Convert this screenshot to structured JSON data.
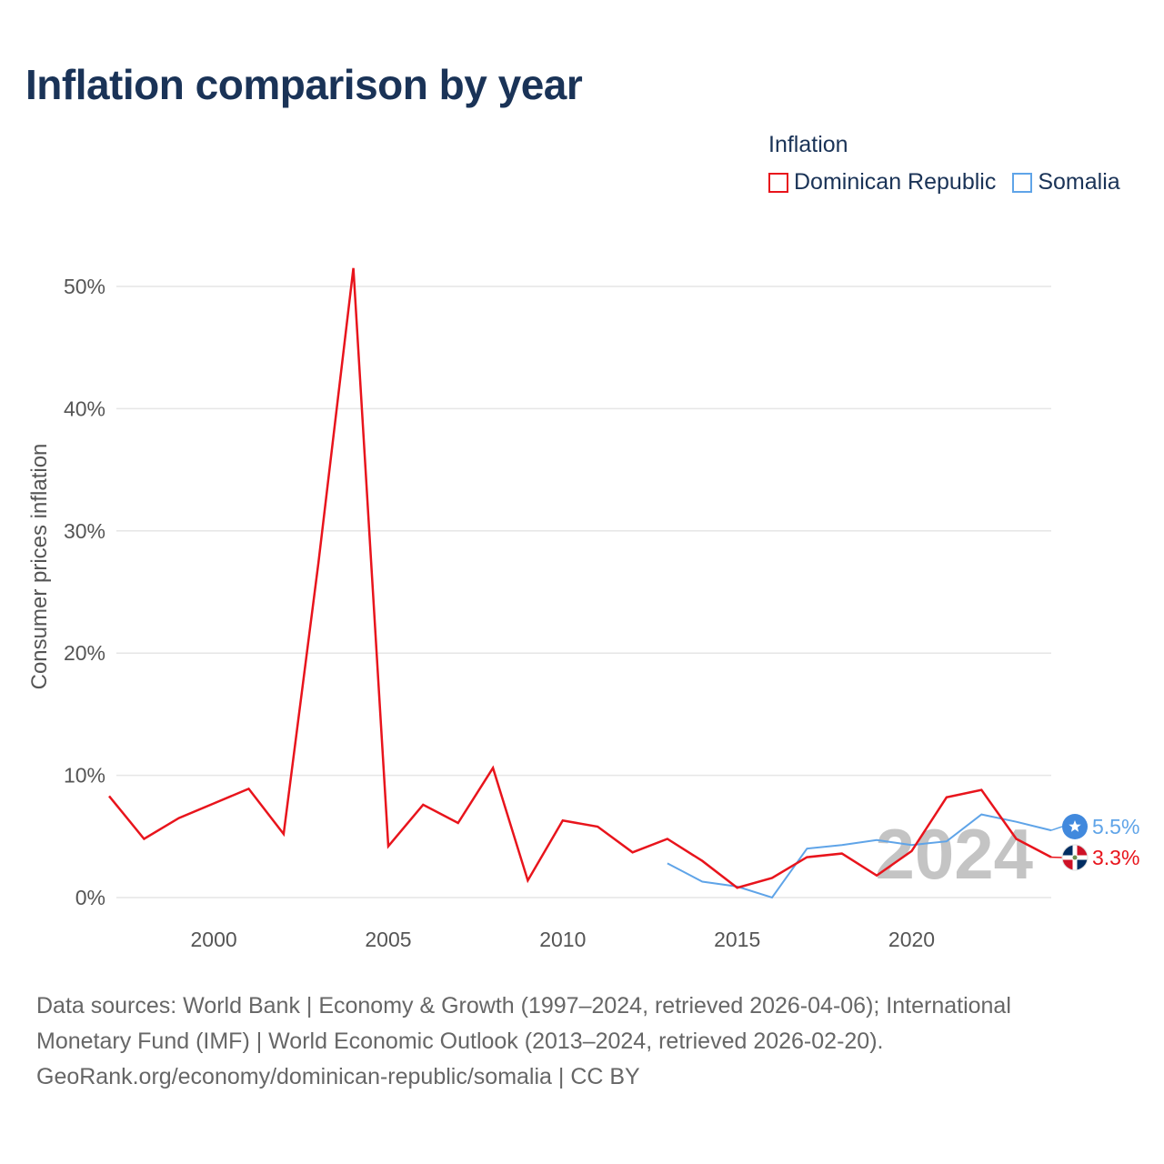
{
  "header": {
    "title": "Inflation comparison by year"
  },
  "legend": {
    "title": "Inflation",
    "items": [
      {
        "label": "Dominican Republic",
        "color": "#e8141c"
      },
      {
        "label": "Somalia",
        "color": "#5fa4e8"
      }
    ]
  },
  "chart_data": {
    "type": "line",
    "title": "Inflation comparison by year",
    "xlabel": "",
    "ylabel": "Consumer prices inflation",
    "xlim": [
      1997,
      2024
    ],
    "ylim": [
      0,
      52
    ],
    "x_ticks": [
      2000,
      2005,
      2010,
      2015,
      2020
    ],
    "y_ticks": [
      0,
      10,
      20,
      30,
      40,
      50
    ],
    "y_tick_suffix": "%",
    "watermark_year": "2024",
    "series": [
      {
        "name": "Dominican Republic",
        "color": "#e8141c",
        "end_label": "3.3%",
        "x": [
          1997,
          1998,
          1999,
          2000,
          2001,
          2002,
          2003,
          2004,
          2005,
          2006,
          2007,
          2008,
          2009,
          2010,
          2011,
          2012,
          2013,
          2014,
          2015,
          2016,
          2017,
          2018,
          2019,
          2020,
          2021,
          2022,
          2023,
          2024
        ],
        "values": [
          8.3,
          4.8,
          6.5,
          7.7,
          8.9,
          5.2,
          27.4,
          51.5,
          4.2,
          7.6,
          6.1,
          10.6,
          1.4,
          6.3,
          5.8,
          3.7,
          4.8,
          3.0,
          0.8,
          1.6,
          3.3,
          3.6,
          1.8,
          3.8,
          8.2,
          8.8,
          4.8,
          3.3
        ]
      },
      {
        "name": "Somalia",
        "color": "#5fa4e8",
        "end_label": "5.5%",
        "x": [
          2013,
          2014,
          2015,
          2016,
          2017,
          2018,
          2019,
          2020,
          2021,
          2022,
          2023,
          2024
        ],
        "values": [
          2.8,
          1.3,
          0.9,
          0.0,
          4.0,
          4.3,
          4.7,
          4.3,
          4.6,
          6.8,
          6.2,
          5.5
        ]
      }
    ]
  },
  "footer": {
    "line1": "Data sources: World Bank | Economy & Growth (1997–2024, retrieved 2026-04-06); International Monetary Fund (IMF) | World Economic Outlook (2013–2024, retrieved 2026-02-20).",
    "line2": "GeoRank.org/economy/dominican-republic/somalia | CC BY"
  }
}
